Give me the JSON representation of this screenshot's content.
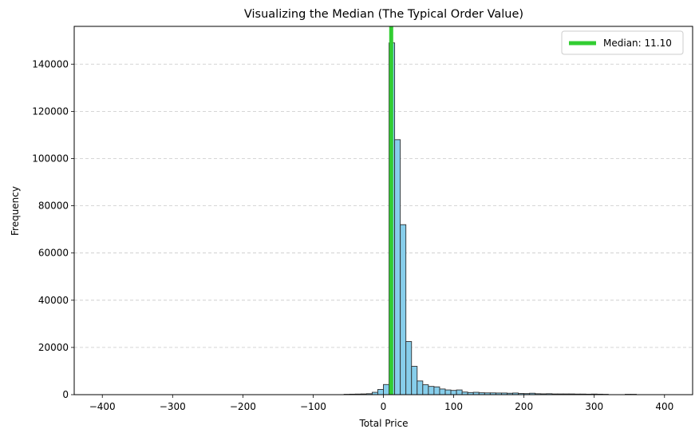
{
  "chart_data": {
    "type": "bar",
    "title": "Visualizing the Median (The Typical Order Value)",
    "xlabel": "Total Price",
    "ylabel": "Frequency",
    "xlim": [
      -440,
      440
    ],
    "ylim": [
      0,
      156000
    ],
    "x_ticks": [
      -400,
      -300,
      -200,
      -100,
      0,
      100,
      200,
      300,
      400
    ],
    "y_ticks": [
      0,
      20000,
      40000,
      60000,
      80000,
      100000,
      120000,
      140000
    ],
    "grid": "y-dashed",
    "bin_width": 8,
    "bins_left_edge": [
      -56,
      -48,
      -40,
      -32,
      -24,
      -16,
      -8,
      0,
      8,
      16,
      24,
      32,
      40,
      48,
      56,
      64,
      72,
      80,
      88,
      96,
      104,
      112,
      120,
      128,
      136,
      144,
      152,
      160,
      168,
      176,
      184,
      192,
      200,
      208,
      216,
      224,
      232,
      240,
      248,
      256,
      264,
      272,
      280,
      288,
      296,
      304,
      312,
      344,
      352
    ],
    "frequencies": [
      150,
      200,
      250,
      300,
      400,
      1000,
      2200,
      4300,
      149000,
      108000,
      72000,
      22500,
      12000,
      5800,
      4200,
      3500,
      3300,
      2400,
      2000,
      1800,
      2000,
      1100,
      900,
      1000,
      800,
      750,
      750,
      700,
      700,
      600,
      700,
      500,
      450,
      600,
      400,
      350,
      400,
      300,
      300,
      300,
      300,
      250,
      250,
      200,
      250,
      200,
      150,
      150,
      150
    ],
    "bar_color": "#87CEEB",
    "edge_color": "#2f2f2f",
    "median": {
      "value": 11.1,
      "color": "#32CD32",
      "label": "Median: 11.10"
    },
    "legend": {
      "position": "top-right",
      "entries": [
        "Median: 11.10"
      ]
    }
  }
}
